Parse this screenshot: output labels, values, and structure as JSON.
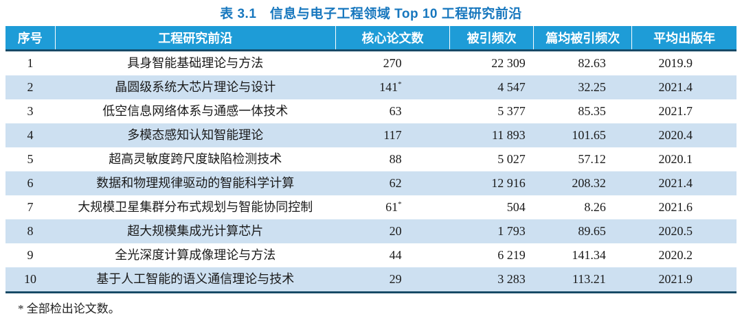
{
  "title": "表 3.1　信息与电子工程领域 Top 10 工程研究前沿",
  "table": {
    "columns": [
      "序号",
      "工程研究前沿",
      "核心论文数",
      "被引频次",
      "篇均被引频次",
      "平均出版年"
    ],
    "rows": [
      {
        "no": "1",
        "front": "具身智能基础理论与方法",
        "core_papers": "270",
        "citations": "22 309",
        "citations_per_paper": "82.63",
        "mean_year": "2019.9"
      },
      {
        "no": "2",
        "front": "晶圆级系统大芯片理论与设计",
        "core_papers": "141*",
        "citations": "4 547",
        "citations_per_paper": "32.25",
        "mean_year": "2021.4"
      },
      {
        "no": "3",
        "front": "低空信息网络体系与通感一体技术",
        "core_papers": "63",
        "citations": "5 377",
        "citations_per_paper": "85.35",
        "mean_year": "2021.7"
      },
      {
        "no": "4",
        "front": "多模态感知认知智能理论",
        "core_papers": "117",
        "citations": "11 893",
        "citations_per_paper": "101.65",
        "mean_year": "2020.4"
      },
      {
        "no": "5",
        "front": "超高灵敏度跨尺度缺陷检测技术",
        "core_papers": "88",
        "citations": "5 027",
        "citations_per_paper": "57.12",
        "mean_year": "2020.1"
      },
      {
        "no": "6",
        "front": "数据和物理规律驱动的智能科学计算",
        "core_papers": "62",
        "citations": "12 916",
        "citations_per_paper": "208.32",
        "mean_year": "2021.4"
      },
      {
        "no": "7",
        "front": "大规模卫星集群分布式规划与智能协同控制",
        "core_papers": "61*",
        "citations": "504",
        "citations_per_paper": "8.26",
        "mean_year": "2021.6"
      },
      {
        "no": "8",
        "front": "超大规模集成光计算芯片",
        "core_papers": "20",
        "citations": "1 793",
        "citations_per_paper": "89.65",
        "mean_year": "2020.5"
      },
      {
        "no": "9",
        "front": "全光深度计算成像理论与方法",
        "core_papers": "44",
        "citations": "6 219",
        "citations_per_paper": "141.34",
        "mean_year": "2020.2"
      },
      {
        "no": "10",
        "front": "基于人工智能的语义通信理论与技术",
        "core_papers": "29",
        "citations": "3 283",
        "citations_per_paper": "113.21",
        "mean_year": "2021.9"
      }
    ]
  },
  "footnote": "* 全部检出论文数。",
  "colors": {
    "header_bg": "#1e9cd7",
    "stripe_bg": "#cde0f1",
    "rule_dark": "#174a66",
    "title_text": "#1777be",
    "header_text": "#ffffff",
    "body_text": "#1a1a1a"
  }
}
